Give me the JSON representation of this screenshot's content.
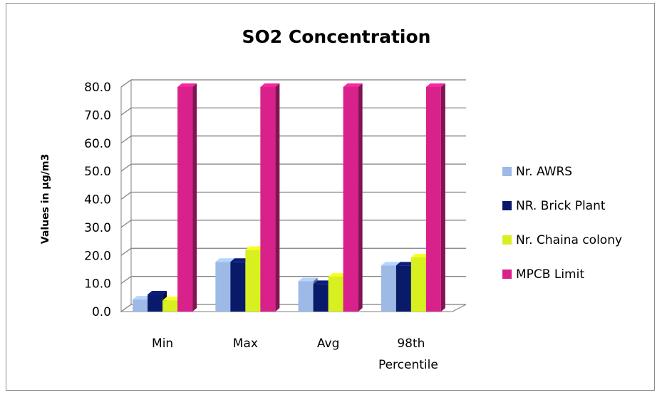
{
  "chart_data": {
    "type": "bar",
    "title": "SO2 Concentration",
    "ylabel": "Values in µg/m3",
    "xlabel": "",
    "categories": [
      "Min",
      "Max",
      "Avg",
      "98th Percentile"
    ],
    "ylim": [
      0,
      80
    ],
    "ytick_labels": [
      "0.0",
      "10.0",
      "20.0",
      "30.0",
      "40.0",
      "50.0",
      "60.0",
      "70.0",
      "80.0"
    ],
    "grid": true,
    "legend_position": "right",
    "series": [
      {
        "name": "Nr. AWRS",
        "color": "#9db9e6",
        "values": [
          4.3,
          17.7,
          10.8,
          16.4
        ]
      },
      {
        "name": "NR. Brick Plant",
        "color": "#0a1a6b",
        "values": [
          6.1,
          17.7,
          9.8,
          16.4
        ]
      },
      {
        "name": "Nr. Chaina colony",
        "color": "#d8f020",
        "values": [
          4.0,
          22.0,
          12.4,
          19.3
        ]
      },
      {
        "name": "MPCB Limit",
        "color": "#d8218a",
        "values": [
          80,
          80,
          80,
          80
        ]
      }
    ]
  }
}
